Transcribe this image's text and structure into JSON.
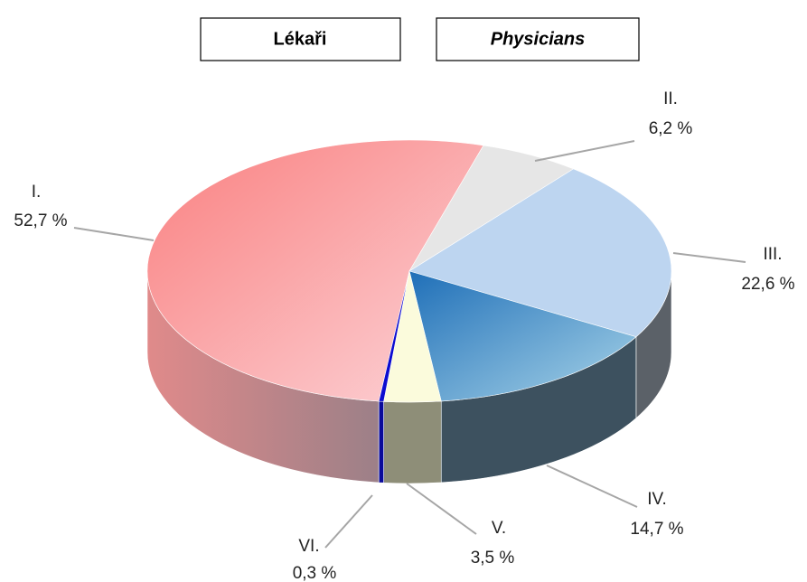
{
  "chart_data": {
    "type": "pie",
    "title": "Lékaři",
    "subtitle": "Physicians",
    "categories": [
      "I.",
      "II.",
      "III.",
      "IV.",
      "V.",
      "VI."
    ],
    "values": [
      52.7,
      6.2,
      22.6,
      14.7,
      3.5,
      0.3
    ],
    "value_labels": [
      "52,7 %",
      "6,2 %",
      "22,6 %",
      "14,7 %",
      "3,5 %",
      "0,3 %"
    ],
    "colors": [
      "#f98c8c",
      "#e6e6e6",
      "#bdd5f0",
      "#2c7fc2",
      "#fbfbdc",
      "#0c0cd0"
    ],
    "side_colors": [
      "#c98d92",
      "#c8c8c8",
      "#5b6168",
      "#3d515f",
      "#8e8e78",
      "#0a0a9a"
    ]
  }
}
